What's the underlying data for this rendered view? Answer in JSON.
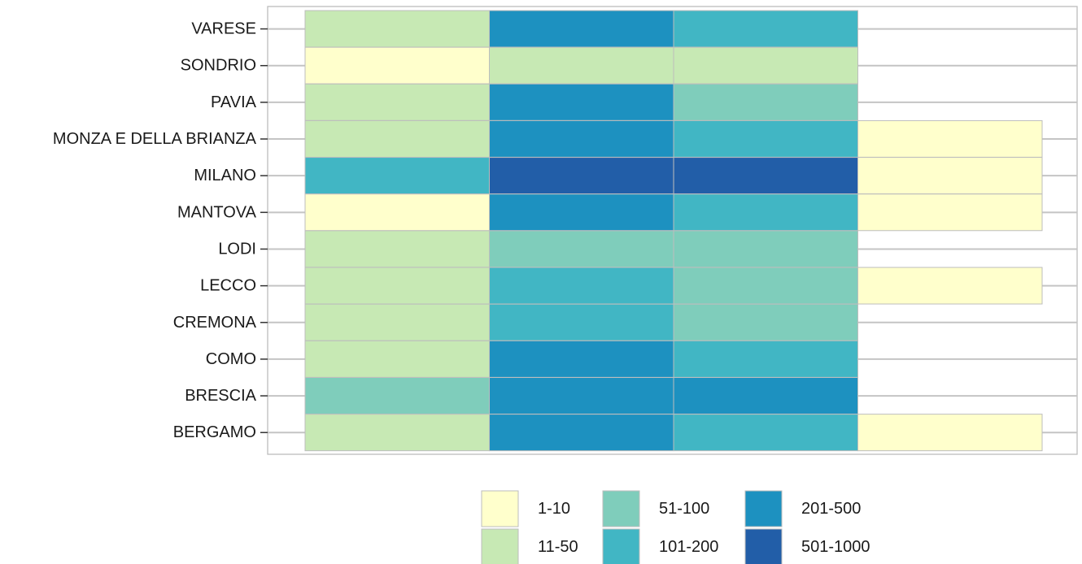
{
  "chart_data": {
    "type": "heatmap",
    "title": "",
    "xlabel": "",
    "ylabel": "",
    "x": [
      "",
      "",
      "",
      ""
    ],
    "rows": [
      "VARESE",
      "SONDRIO",
      "PAVIA",
      "MONZA E DELLA BRIANZA",
      "MILANO",
      "MANTOVA",
      "LODI",
      "LECCO",
      "CREMONA",
      "COMO",
      "BRESCIA",
      "BERGAMO"
    ],
    "cells": [
      [
        "11-50",
        "201-500",
        "101-200",
        null
      ],
      [
        "1-10",
        "11-50",
        "11-50",
        null
      ],
      [
        "11-50",
        "201-500",
        "51-100",
        null
      ],
      [
        "11-50",
        "201-500",
        "101-200",
        "1-10"
      ],
      [
        "101-200",
        "501-1000",
        "501-1000",
        "1-10"
      ],
      [
        "1-10",
        "201-500",
        "101-200",
        "1-10"
      ],
      [
        "11-50",
        "51-100",
        "51-100",
        null
      ],
      [
        "11-50",
        "101-200",
        "51-100",
        "1-10"
      ],
      [
        "11-50",
        "101-200",
        "51-100",
        null
      ],
      [
        "11-50",
        "201-500",
        "101-200",
        null
      ],
      [
        "51-100",
        "201-500",
        "201-500",
        null
      ],
      [
        "11-50",
        "201-500",
        "101-200",
        "1-10"
      ]
    ],
    "categories": [
      "1-10",
      "11-50",
      "51-100",
      "101-200",
      "201-500",
      "501-1000"
    ],
    "colors": {
      "1-10": "#FFFFCC",
      "11-50": "#C7E9B4",
      "51-100": "#7FCDBB",
      "101-200": "#41B6C4",
      "201-500": "#1D91C0",
      "501-1000": "#225EA8"
    },
    "grid": true,
    "legend_position": "bottom"
  }
}
